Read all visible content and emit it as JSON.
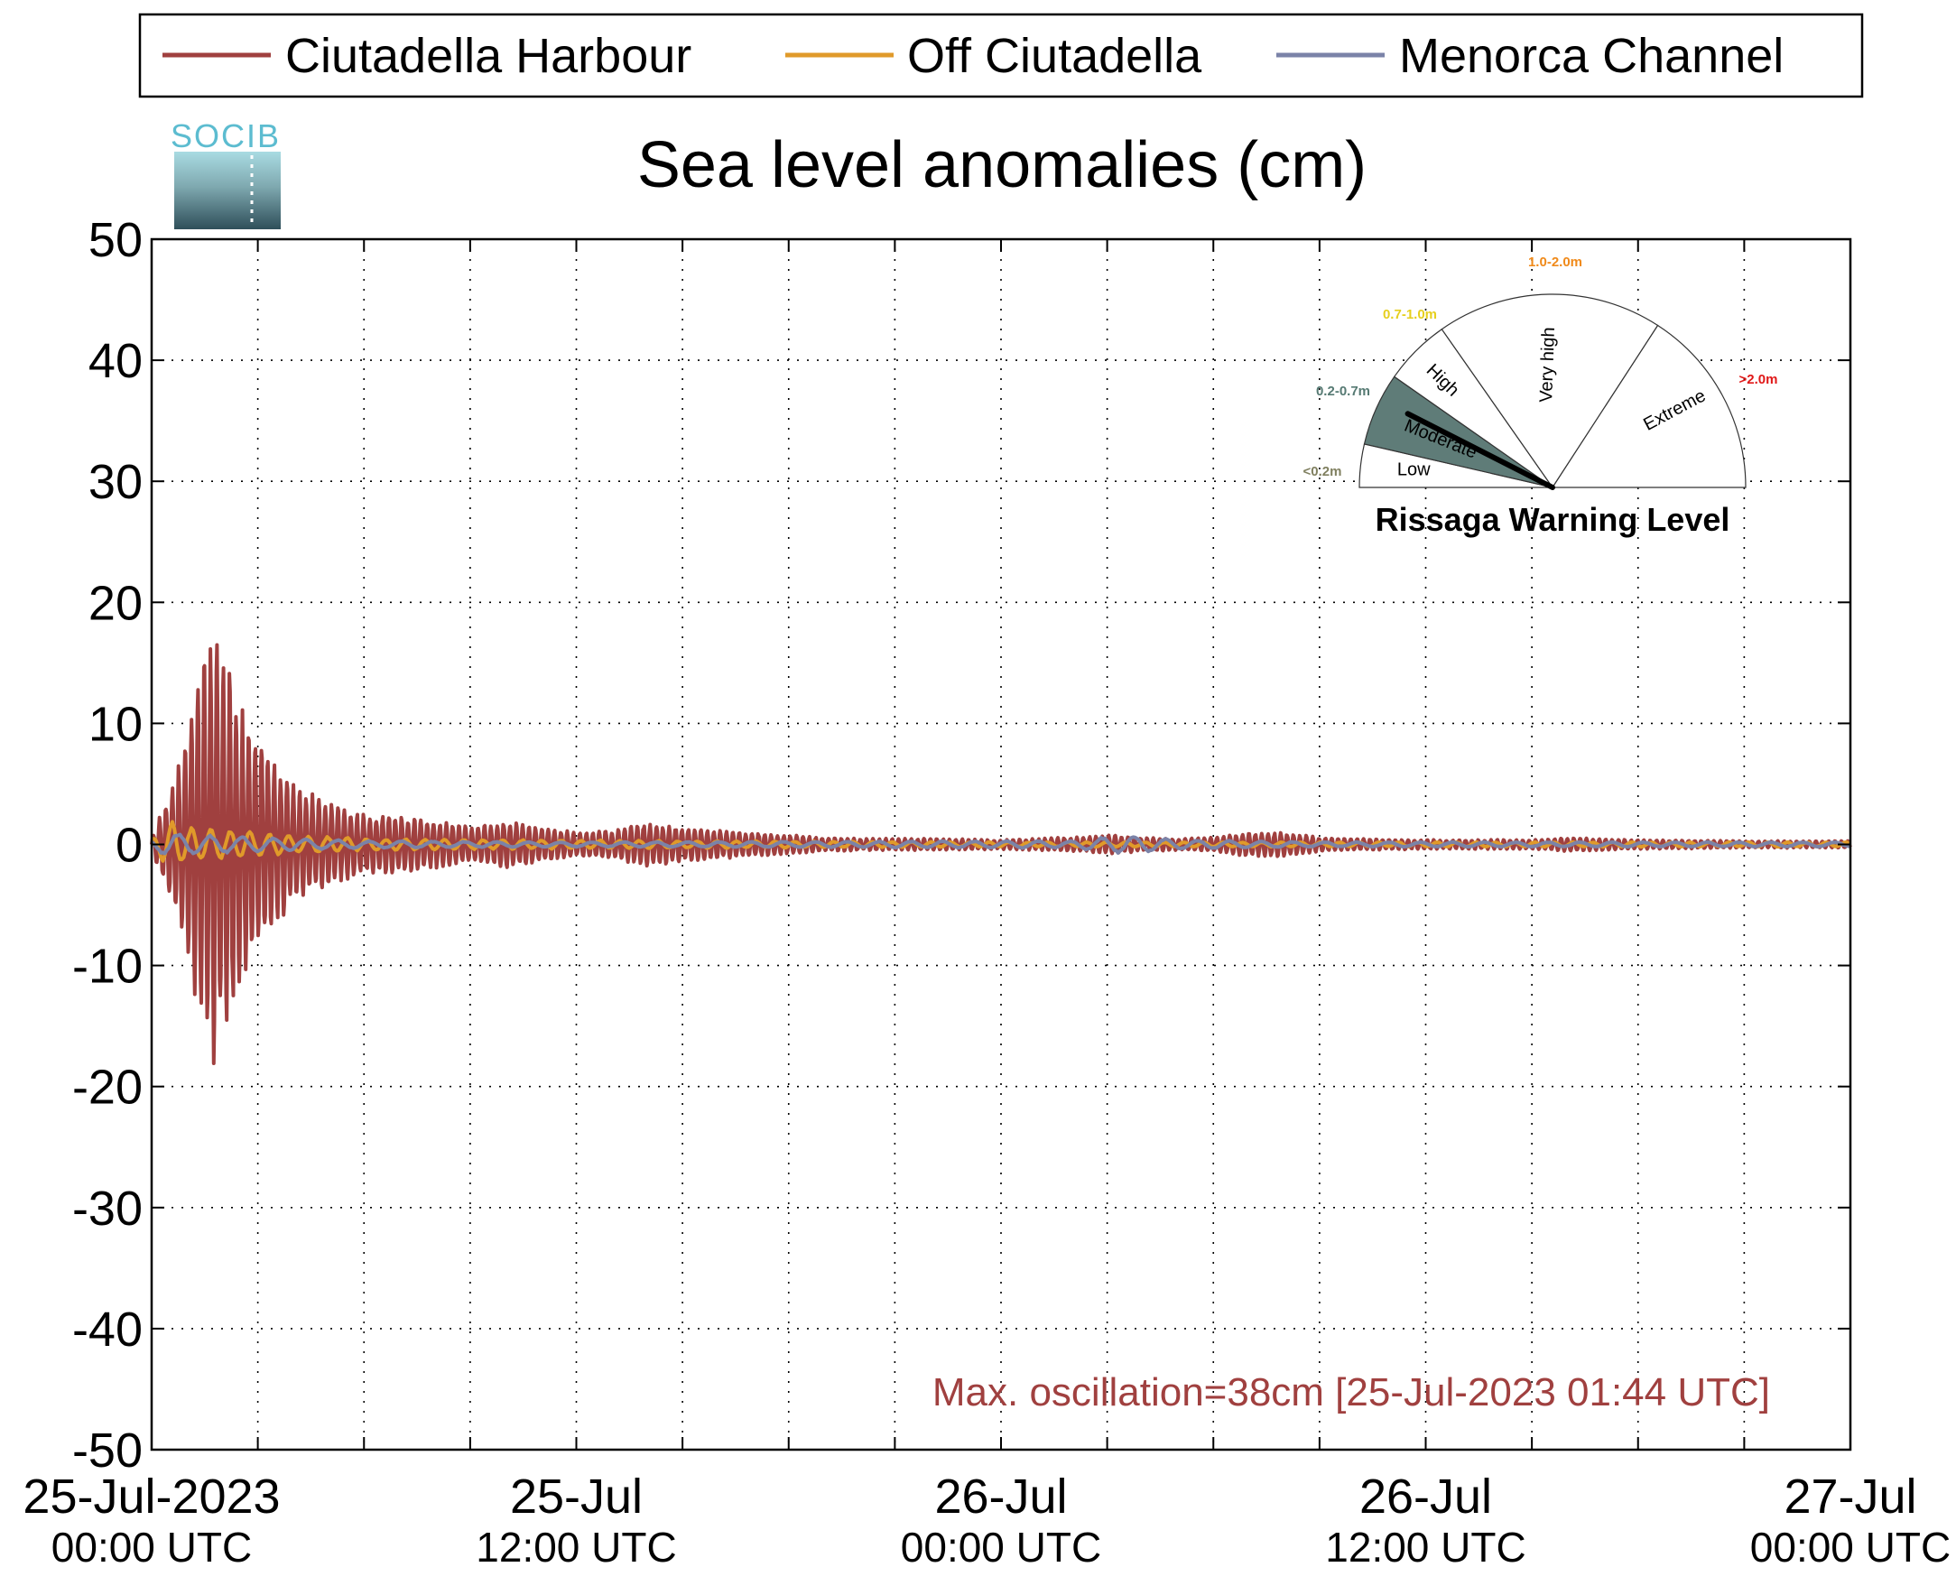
{
  "logo": {
    "text": "SOCIB"
  },
  "chart_data": {
    "type": "line",
    "title": "Sea level anomalies (cm)",
    "xlabel": "",
    "ylabel": "",
    "ylim": [
      -50,
      50
    ],
    "yticks": [
      50,
      40,
      30,
      20,
      10,
      0,
      -10,
      -20,
      -30,
      -40,
      -50
    ],
    "x_range_hours": [
      0,
      48
    ],
    "x_minor_tick_step_hours": 3,
    "grid": true,
    "legend_position": "top",
    "xticks": [
      {
        "hour": 0,
        "date": "25-Jul-2023",
        "time": "00:00 UTC"
      },
      {
        "hour": 12,
        "date": "25-Jul",
        "time": "12:00 UTC"
      },
      {
        "hour": 24,
        "date": "26-Jul",
        "time": "00:00 UTC"
      },
      {
        "hour": 36,
        "date": "26-Jul",
        "time": "12:00 UTC"
      },
      {
        "hour": 48,
        "date": "27-Jul",
        "time": "00:00 UTC"
      }
    ],
    "series": [
      {
        "name": "Ciutadella Harbour",
        "color": "#a0403f",
        "envelope": [
          [
            0,
            0.5
          ],
          [
            0.3,
            3
          ],
          [
            0.6,
            5
          ],
          [
            1.0,
            10
          ],
          [
            1.3,
            14
          ],
          [
            1.6,
            17.5
          ],
          [
            1.75,
            18.5
          ],
          [
            1.9,
            17
          ],
          [
            2.2,
            15
          ],
          [
            2.6,
            11
          ],
          [
            3.0,
            9
          ],
          [
            3.5,
            7
          ],
          [
            4.0,
            5
          ],
          [
            5.0,
            3.5
          ],
          [
            6.0,
            2.5
          ],
          [
            7.0,
            2.5
          ],
          [
            8.0,
            2
          ],
          [
            9.0,
            1.5
          ],
          [
            10.0,
            2
          ],
          [
            11.0,
            1.5
          ],
          [
            12.0,
            1
          ],
          [
            13.0,
            1.2
          ],
          [
            14.0,
            1.8
          ],
          [
            15.0,
            1.5
          ],
          [
            16.0,
            1.2
          ],
          [
            17.0,
            1
          ],
          [
            18.0,
            0.8
          ],
          [
            19.0,
            0.6
          ],
          [
            20.0,
            0.5
          ],
          [
            22.0,
            0.5
          ],
          [
            24.0,
            0.4
          ],
          [
            26.0,
            0.6
          ],
          [
            27.0,
            0.8
          ],
          [
            28.0,
            0.6
          ],
          [
            29.0,
            0.5
          ],
          [
            30.0,
            0.6
          ],
          [
            31.0,
            1
          ],
          [
            32.0,
            1
          ],
          [
            33.0,
            0.6
          ],
          [
            34.0,
            0.5
          ],
          [
            36.0,
            0.4
          ],
          [
            39.0,
            0.4
          ],
          [
            40.0,
            0.6
          ],
          [
            41.0,
            0.5
          ],
          [
            42.0,
            0.4
          ],
          [
            45.0,
            0.3
          ],
          [
            48.0,
            0.3
          ]
        ]
      },
      {
        "name": "Off Ciutadella",
        "color": "#e09a2a",
        "envelope": [
          [
            0,
            0.5
          ],
          [
            0.5,
            2
          ],
          [
            1.0,
            1.5
          ],
          [
            2.0,
            1.2
          ],
          [
            3.0,
            1
          ],
          [
            4.0,
            0.8
          ],
          [
            6.0,
            0.5
          ],
          [
            10.0,
            0.4
          ],
          [
            16.0,
            0.3
          ],
          [
            24.0,
            0.2
          ],
          [
            48.0,
            0.2
          ]
        ]
      },
      {
        "name": "Menorca Channel",
        "color": "#7b83a8",
        "envelope": [
          [
            0,
            0.5
          ],
          [
            0.5,
            1.0
          ],
          [
            1.5,
            0.8
          ],
          [
            3.0,
            0.6
          ],
          [
            6.0,
            0.3
          ],
          [
            12.0,
            0.2
          ],
          [
            26.0,
            0.3
          ],
          [
            27.5,
            0.8
          ],
          [
            29.0,
            0.4
          ],
          [
            33.0,
            0.2
          ],
          [
            48.0,
            0.2
          ]
        ]
      }
    ],
    "annotation": "Max. oscillation=38cm [25-Jul-2023 01:44 UTC]",
    "annotation_color": "#a0403f"
  },
  "gauge": {
    "title": "Rissaga Warning Level",
    "pointer_level": "Moderate",
    "segments": [
      {
        "label": "Low",
        "range": "<0.2m",
        "range_color": "#808060",
        "fill": "#ffffff"
      },
      {
        "label": "Moderate",
        "range": "0.2-0.7m",
        "range_color": "#567a73",
        "fill": "#5f7c78"
      },
      {
        "label": "High",
        "range": "0.7-1.0m",
        "range_color": "#e6cf1e",
        "fill": "#ffffff"
      },
      {
        "label": "Very high",
        "range": "1.0-2.0m",
        "range_color": "#f08a1a",
        "fill": "#ffffff"
      },
      {
        "label": "Extreme",
        "range": ">2.0m",
        "range_color": "#e01818",
        "fill": "#ffffff"
      }
    ]
  }
}
